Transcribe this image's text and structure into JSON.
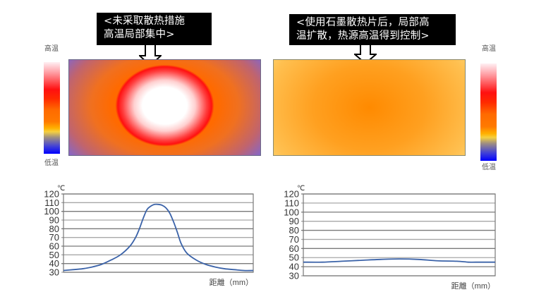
{
  "callouts": {
    "left": {
      "line1": "<未采取散热措施",
      "line2": "高温局部集中>"
    },
    "right": {
      "line1": "<使用石墨散热片后，局部高",
      "line2": "温扩散，热源高温得到控制>"
    }
  },
  "colorbars": {
    "left": {
      "high_label": "高温",
      "low_label": "低温"
    },
    "right": {
      "high_label": "高温",
      "low_label": "低温"
    },
    "colors": [
      "#fff0f4",
      "#ff1010",
      "#ff6a00",
      "#f5d040",
      "#0000ff"
    ]
  },
  "heatmaps": {
    "left": {
      "description": "concentrated hot spot",
      "center_color": "#ffffff",
      "ring_color": "#ff1010",
      "edge_color": "#6a6af0"
    },
    "right": {
      "description": "diffused heat",
      "center_color": "#ff8a00",
      "edge_color": "#ffe690"
    }
  },
  "chart_data": [
    {
      "type": "line",
      "title": "",
      "ylabel": "℃",
      "xlabel": "距離（mm）",
      "ylim": [
        30,
        120
      ],
      "yticks": [
        30,
        40,
        50,
        60,
        70,
        80,
        90,
        100,
        110,
        120
      ],
      "grid": true,
      "line_color": "#3a62a8",
      "x": [
        0,
        5,
        10,
        15,
        20,
        25,
        30,
        35,
        38,
        40,
        42,
        44,
        46,
        48,
        50,
        52,
        54,
        56,
        58,
        60,
        62,
        65,
        70,
        75,
        80,
        85,
        90,
        95,
        100
      ],
      "values": [
        32,
        33,
        34,
        36,
        39,
        44,
        50,
        60,
        70,
        80,
        92,
        102,
        106,
        108,
        108,
        107,
        104,
        98,
        88,
        76,
        63,
        52,
        44,
        39,
        36,
        34,
        33,
        32,
        32
      ]
    },
    {
      "type": "line",
      "title": "",
      "ylabel": "℃",
      "xlabel": "距離（mm）",
      "ylim": [
        30,
        120
      ],
      "yticks": [
        30,
        40,
        50,
        60,
        70,
        80,
        90,
        100,
        110,
        120
      ],
      "grid": true,
      "line_color": "#3a62a8",
      "x": [
        0,
        10,
        20,
        30,
        40,
        50,
        60,
        70,
        80,
        86,
        90,
        100
      ],
      "values": [
        45,
        45,
        46,
        47,
        48,
        48.5,
        48,
        46.5,
        46,
        45,
        45,
        45
      ]
    }
  ]
}
